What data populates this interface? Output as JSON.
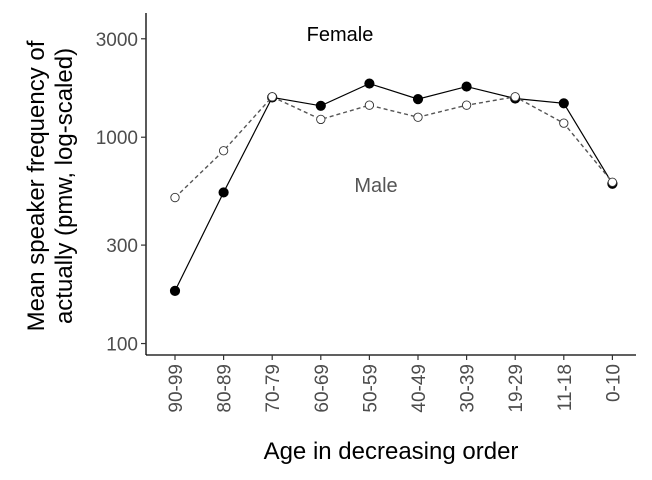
{
  "chart_data": {
    "type": "line",
    "title": "",
    "xlabel": "Age in decreasing order",
    "ylabel_lines": [
      "Mean speaker frequency of",
      "actually (pmw, log-scaled)"
    ],
    "yscale": "log",
    "ylim": [
      88,
      4000
    ],
    "yticks": [
      100,
      300,
      1000,
      3000
    ],
    "ytick_labels": [
      "100",
      "300",
      "1000",
      "3000"
    ],
    "grid": false,
    "legend": "none",
    "categories": [
      "90-99",
      "80-89",
      "70-79",
      "60-69",
      "50-59",
      "40-49",
      "30-39",
      "19-29",
      "11-18",
      "0-10"
    ],
    "series": [
      {
        "name": "Female",
        "values": [
          180,
          540,
          1560,
          1420,
          1820,
          1530,
          1760,
          1540,
          1460,
          595
        ],
        "color": "#000000",
        "line_style": "solid",
        "marker": "filled-circle"
      },
      {
        "name": "Male",
        "values": [
          510,
          860,
          1570,
          1220,
          1430,
          1250,
          1430,
          1570,
          1170,
          605
        ],
        "color": "#555555",
        "line_style": "dashed",
        "marker": "open-circle"
      }
    ]
  }
}
